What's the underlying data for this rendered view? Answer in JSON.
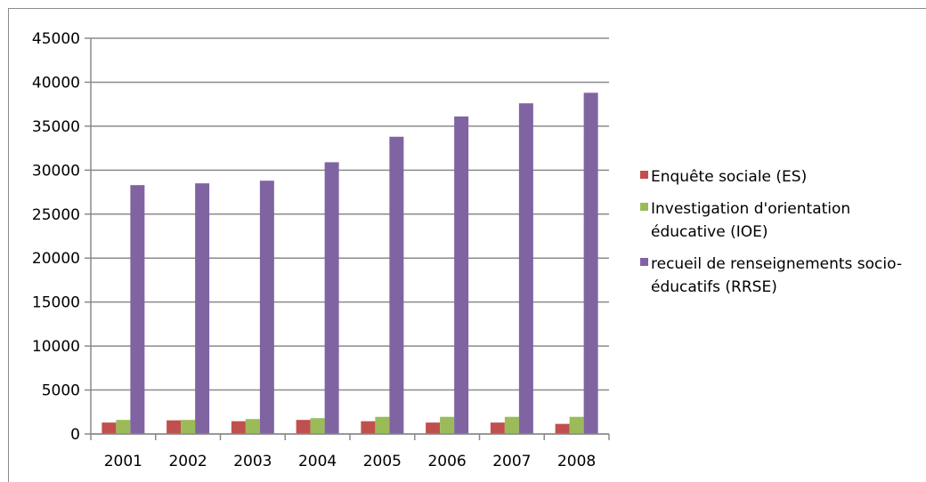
{
  "chart_data": {
    "type": "bar",
    "categories": [
      "2001",
      "2002",
      "2003",
      "2004",
      "2005",
      "2006",
      "2007",
      "2008"
    ],
    "ylim": [
      0,
      45000
    ],
    "yticks": [
      "0",
      "5000",
      "10000",
      "15000",
      "20000",
      "25000",
      "30000",
      "35000",
      "40000",
      "45000"
    ],
    "grid": true,
    "legend_position": "right",
    "series": [
      {
        "name": "Enquête sociale (ES)",
        "color": "#c0504d",
        "values": [
          1300,
          1550,
          1450,
          1600,
          1450,
          1300,
          1300,
          1150
        ]
      },
      {
        "name": "Investigation d'orientation éducative (IOE)",
        "color": "#9bbb59",
        "values": [
          1600,
          1600,
          1700,
          1800,
          1950,
          1950,
          1950,
          1950
        ]
      },
      {
        "name": "recueil de renseignements socio-éducatifs (RRSE)",
        "color": "#8064a2",
        "values": [
          28300,
          28500,
          28800,
          30900,
          33800,
          36100,
          37600,
          38800
        ]
      }
    ]
  }
}
